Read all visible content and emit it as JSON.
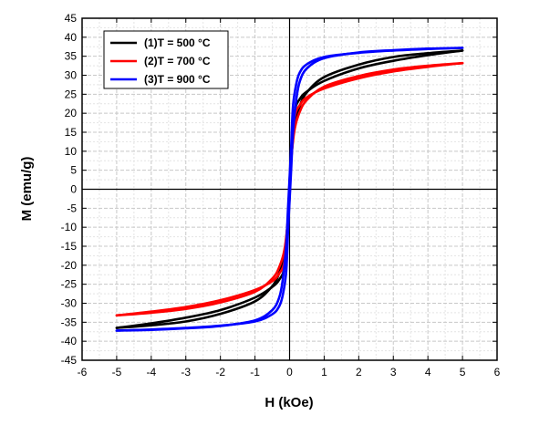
{
  "chart_data": {
    "type": "line",
    "xlabel": "H (kOe)",
    "ylabel": "M (emu/g)",
    "xlim": [
      -6,
      6
    ],
    "ylim": [
      -45,
      45
    ],
    "xticks": [
      -6,
      -5,
      -4,
      -3,
      -2,
      -1,
      0,
      1,
      2,
      3,
      4,
      5,
      6
    ],
    "yticks": [
      -45,
      -40,
      -35,
      -30,
      -25,
      -20,
      -15,
      -10,
      -5,
      0,
      5,
      10,
      15,
      20,
      25,
      30,
      35,
      40,
      45
    ],
    "grid": true,
    "legend_position": "top-left",
    "series": [
      {
        "name": "(1)T = 500 °C",
        "color": "#000000",
        "branch_descending": {
          "x": [
            5,
            4,
            3,
            2,
            1,
            0.5,
            0.3,
            0.15,
            0.05,
            0,
            -0.05,
            -0.15,
            -0.3,
            -0.5,
            -1,
            -2,
            -3,
            -4,
            -5
          ],
          "y": [
            36.5,
            35.3,
            33.8,
            31.8,
            28.5,
            25.7,
            23.8,
            20.5,
            10,
            2,
            -8,
            -17,
            -22,
            -25.5,
            -29.5,
            -32.8,
            -34.8,
            -35.8,
            -36.5
          ]
        },
        "branch_ascending": {
          "x": [
            -5,
            -4,
            -3,
            -2,
            -1,
            -0.5,
            -0.3,
            -0.15,
            -0.05,
            0,
            0.05,
            0.15,
            0.3,
            0.5,
            1,
            2,
            3,
            4,
            5
          ],
          "y": [
            -36.5,
            -35.3,
            -33.8,
            -31.8,
            -28.5,
            -25.7,
            -23.8,
            -20.5,
            -10,
            -2,
            8,
            17,
            22,
            25.5,
            29.5,
            32.8,
            34.8,
            35.8,
            36.5
          ]
        }
      },
      {
        "name": "(2)T = 700 °C",
        "color": "#ff0000",
        "branch_descending": {
          "x": [
            5,
            4,
            3,
            2,
            1,
            0.5,
            0.3,
            0.15,
            0.05,
            0,
            -0.05,
            -0.15,
            -0.3,
            -0.5,
            -1,
            -2,
            -3,
            -4,
            -5
          ],
          "y": [
            33.2,
            32.2,
            31,
            29.2,
            26.5,
            24.2,
            22.2,
            19,
            9,
            1,
            -8,
            -16,
            -20.5,
            -23.5,
            -27,
            -29.8,
            -31.5,
            -32.5,
            -33.2
          ]
        },
        "branch_ascending": {
          "x": [
            -5,
            -4,
            -3,
            -2,
            -1,
            -0.5,
            -0.3,
            -0.15,
            -0.05,
            0,
            0.05,
            0.15,
            0.3,
            0.5,
            1,
            2,
            3,
            4,
            5
          ],
          "y": [
            -33.2,
            -32.2,
            -31,
            -29.2,
            -26.5,
            -24.2,
            -22.2,
            -19,
            -9,
            -1,
            8,
            16,
            20.5,
            23.5,
            27,
            29.8,
            31.5,
            32.5,
            33.2
          ]
        }
      },
      {
        "name": "(3)T = 900 °C",
        "color": "#0000ff",
        "branch_descending": {
          "x": [
            5,
            4,
            3,
            2,
            1,
            0.5,
            0.3,
            0.2,
            0.1,
            0.05,
            0,
            -0.05,
            -0.1,
            -0.2,
            -0.3,
            -0.5,
            -1,
            -2,
            -3,
            -4,
            -5
          ],
          "y": [
            37.2,
            36.9,
            36.5,
            35.9,
            34.8,
            32.9,
            30.8,
            28,
            22,
            12,
            3,
            -6,
            -15,
            -24,
            -28.5,
            -31.8,
            -34.5,
            -36,
            -36.6,
            -37,
            -37.2
          ]
        },
        "branch_ascending": {
          "x": [
            -5,
            -4,
            -3,
            -2,
            -1,
            -0.5,
            -0.3,
            -0.2,
            -0.1,
            -0.05,
            0,
            0.05,
            0.1,
            0.2,
            0.3,
            0.5,
            1,
            2,
            3,
            4,
            5
          ],
          "y": [
            -37.2,
            -36.9,
            -36.5,
            -35.9,
            -34.8,
            -32.9,
            -30.8,
            -28,
            -22,
            -12,
            -3,
            6,
            15,
            24,
            28.5,
            31.8,
            34.5,
            36,
            36.6,
            37,
            37.2
          ]
        }
      }
    ]
  }
}
